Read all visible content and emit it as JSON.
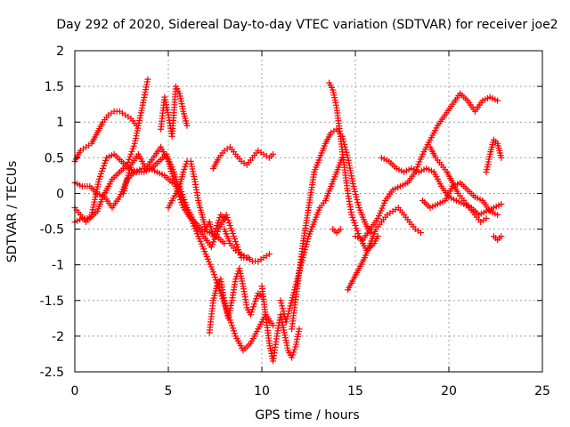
{
  "chart_data": {
    "type": "scatter",
    "title": "Day 292 of 2020, Sidereal Day-to-day VTEC variation (SDTVAR) for receiver joe2",
    "xlabel": "GPS time / hours",
    "ylabel": "SDTVAR / TECUs",
    "xlim": [
      0,
      25
    ],
    "ylim": [
      -2.5,
      2
    ],
    "xticks": [
      0,
      5,
      10,
      15,
      20,
      25
    ],
    "yticks": [
      -2.5,
      -2,
      -1.5,
      -1,
      -0.5,
      0,
      0.5,
      1,
      1.5,
      2
    ],
    "xtick_labels": [
      "0",
      "5",
      "10",
      "15",
      "20",
      "25"
    ],
    "ytick_labels": [
      "-2.5",
      "-2",
      "-1.5",
      "-1",
      "-0.5",
      "0",
      "0.5",
      "1",
      "1.5",
      "2"
    ],
    "grid": true,
    "marker": "+",
    "color": "#ff0000",
    "series": [
      {
        "x": [
          0.0,
          0.3,
          0.6,
          0.9,
          1.2,
          1.5,
          1.8,
          2.1,
          2.4,
          2.7,
          3.0,
          3.3
        ],
        "y": [
          0.45,
          0.6,
          0.65,
          0.7,
          0.85,
          1.0,
          1.1,
          1.15,
          1.15,
          1.1,
          1.05,
          0.95
        ]
      },
      {
        "x": [
          0.0,
          0.4,
          0.8,
          1.2,
          1.5,
          1.8,
          2.0,
          2.4,
          2.8,
          3.2,
          3.6,
          3.9
        ],
        "y": [
          -0.4,
          -0.35,
          -0.35,
          -0.25,
          -0.05,
          0.1,
          0.2,
          0.3,
          0.4,
          0.7,
          1.2,
          1.6
        ]
      },
      {
        "x": [
          0.0,
          0.4,
          0.8,
          1.2,
          1.6,
          2.0,
          2.4,
          2.8,
          3.2,
          3.6,
          4.0,
          4.4,
          4.8,
          5.2,
          5.6,
          6.0,
          6.4,
          6.8,
          7.2,
          7.6,
          8.0
        ],
        "y": [
          0.15,
          0.1,
          0.1,
          0.0,
          -0.05,
          -0.2,
          -0.05,
          0.2,
          0.3,
          0.35,
          0.35,
          0.3,
          0.25,
          0.15,
          0.1,
          -0.2,
          -0.4,
          -0.5,
          -0.55,
          -0.6,
          -0.7
        ]
      },
      {
        "x": [
          0.0,
          0.3,
          0.6,
          0.9,
          1.3,
          1.7,
          2.1,
          2.5,
          2.9,
          3.3,
          3.7,
          4.1,
          4.5,
          4.9,
          5.3,
          5.7,
          6.1,
          6.5,
          6.9,
          7.3,
          7.7,
          8.1,
          8.5,
          8.9,
          9.3
        ],
        "y": [
          -0.2,
          -0.3,
          -0.4,
          -0.3,
          0.2,
          0.5,
          0.55,
          0.45,
          0.35,
          0.3,
          0.3,
          0.35,
          0.45,
          0.55,
          0.3,
          -0.05,
          -0.3,
          -0.45,
          -0.6,
          -0.75,
          -0.5,
          -0.3,
          -0.6,
          -0.9,
          -0.9
        ]
      },
      {
        "x": [
          2.6,
          3.0,
          3.4,
          3.8,
          4.2,
          4.6,
          5.0,
          5.4,
          5.8,
          6.2,
          6.6,
          7.0,
          7.4,
          7.8,
          8.2,
          8.6,
          9.0,
          9.4,
          9.8,
          10.2,
          10.6
        ],
        "y": [
          0.0,
          0.4,
          0.55,
          0.35,
          0.5,
          0.65,
          0.45,
          0.1,
          -0.2,
          -0.35,
          -0.6,
          -0.85,
          -1.1,
          -1.4,
          -1.7,
          -2.0,
          -2.2,
          -2.1,
          -1.9,
          -1.7,
          -1.85
        ]
      },
      {
        "x": [
          4.6,
          4.8,
          5.0,
          5.2,
          5.4,
          5.6,
          5.8,
          6.0
        ],
        "y": [
          0.9,
          1.35,
          1.1,
          0.8,
          1.5,
          1.4,
          1.15,
          0.95
        ]
      },
      {
        "x": [
          5.0,
          5.2,
          5.4,
          5.6,
          5.8,
          6.0,
          6.2,
          6.4,
          6.6,
          6.8,
          7.0,
          7.2,
          7.4,
          7.6,
          7.8,
          8.0
        ],
        "y": [
          -0.2,
          -0.1,
          0.0,
          0.1,
          0.3,
          0.45,
          0.45,
          0.2,
          -0.1,
          -0.3,
          -0.5,
          -0.4,
          -0.6,
          -0.45,
          -0.3,
          -0.35
        ]
      },
      {
        "x": [
          7.2,
          7.4,
          7.6,
          7.8,
          8.0,
          8.2,
          8.4,
          8.6,
          8.8,
          9.0,
          9.2,
          9.4,
          9.6,
          9.8,
          10.0
        ],
        "y": [
          -1.95,
          -1.5,
          -1.3,
          -1.2,
          -1.5,
          -1.75,
          -1.5,
          -1.2,
          -1.05,
          -1.3,
          -1.6,
          -1.7,
          -1.55,
          -1.4,
          -1.45
        ]
      },
      {
        "x": [
          7.4,
          7.7,
          8.0,
          8.3,
          8.6,
          8.9,
          9.2,
          9.5,
          9.8,
          10.1,
          10.4,
          10.6
        ],
        "y": [
          0.35,
          0.5,
          0.6,
          0.65,
          0.55,
          0.45,
          0.4,
          0.5,
          0.6,
          0.55,
          0.5,
          0.55
        ]
      },
      {
        "x": [
          8.0,
          8.3,
          8.6,
          8.9,
          9.2,
          9.5,
          9.8,
          10.1,
          10.4
        ],
        "y": [
          -0.5,
          -0.7,
          -0.8,
          -0.85,
          -0.9,
          -0.95,
          -0.95,
          -0.9,
          -0.85
        ]
      },
      {
        "x": [
          10.0,
          10.2,
          10.4,
          10.6,
          10.8,
          11.0,
          11.2,
          11.4,
          11.6,
          11.8,
          12.0
        ],
        "y": [
          -1.3,
          -1.7,
          -2.1,
          -2.35,
          -2.0,
          -1.7,
          -1.95,
          -2.2,
          -2.3,
          -2.15,
          -1.9
        ]
      },
      {
        "x": [
          11.0,
          11.3,
          11.6,
          11.9,
          12.2,
          12.5,
          12.8,
          13.1,
          13.4,
          13.7,
          14.0,
          14.3
        ],
        "y": [
          -1.5,
          -1.8,
          -1.5,
          -1.2,
          -0.9,
          -0.6,
          -0.4,
          -0.2,
          -0.1,
          0.1,
          0.3,
          0.5
        ]
      },
      {
        "x": [
          11.6,
          11.9,
          12.2,
          12.5,
          12.8,
          13.1,
          13.4,
          13.7,
          14.0,
          14.3,
          14.6,
          14.9,
          15.2,
          15.5,
          15.8
        ],
        "y": [
          -1.9,
          -1.3,
          -0.7,
          -0.2,
          0.3,
          0.5,
          0.7,
          0.85,
          0.9,
          0.8,
          0.5,
          0.1,
          -0.2,
          -0.4,
          -0.55
        ]
      },
      {
        "x": [
          13.6,
          13.8,
          14.0,
          14.2,
          14.4,
          14.6,
          14.8,
          15.0,
          15.2,
          15.4,
          15.6,
          15.8,
          16.0,
          16.2
        ],
        "y": [
          1.55,
          1.45,
          1.2,
          0.8,
          0.4,
          0.0,
          -0.3,
          -0.45,
          -0.6,
          -0.7,
          -0.8,
          -0.75,
          -0.7,
          -0.6
        ]
      },
      {
        "x": [
          13.8,
          14.0,
          14.2
        ],
        "y": [
          -0.5,
          -0.55,
          -0.5
        ]
      },
      {
        "x": [
          14.6,
          14.9,
          15.2,
          15.5,
          15.8,
          16.1,
          16.4,
          16.7,
          17.0,
          17.3,
          17.6,
          17.9,
          18.2,
          18.5
        ],
        "y": [
          -1.35,
          -1.2,
          -1.05,
          -0.9,
          -0.7,
          -0.5,
          -0.4,
          -0.3,
          -0.25,
          -0.2,
          -0.3,
          -0.4,
          -0.5,
          -0.55
        ]
      },
      {
        "x": [
          15.0,
          15.4,
          15.8,
          16.2,
          16.6,
          17.0,
          17.4,
          17.8,
          18.2,
          18.6,
          19.0,
          19.4,
          19.8,
          20.2,
          20.6,
          21.0,
          21.4,
          21.8,
          22.2,
          22.6
        ],
        "y": [
          -0.6,
          -0.65,
          -0.5,
          -0.35,
          -0.1,
          0.05,
          0.1,
          0.15,
          0.3,
          0.55,
          0.75,
          0.95,
          1.1,
          1.25,
          1.4,
          1.3,
          1.15,
          1.3,
          1.35,
          1.3
        ]
      },
      {
        "x": [
          16.4,
          16.8,
          17.2,
          17.6,
          18.0,
          18.4,
          18.8,
          19.2,
          19.6,
          20.0,
          20.4,
          20.8,
          21.2,
          21.6,
          22.0,
          22.4,
          22.8
        ],
        "y": [
          0.5,
          0.45,
          0.35,
          0.3,
          0.35,
          0.3,
          0.35,
          0.3,
          0.1,
          -0.05,
          -0.1,
          -0.15,
          -0.2,
          -0.3,
          -0.25,
          -0.2,
          -0.15
        ]
      },
      {
        "x": [
          18.6,
          19.0,
          19.4,
          19.8,
          20.2,
          20.6,
          21.0,
          21.4,
          21.8,
          22.2,
          22.6
        ],
        "y": [
          -0.1,
          -0.2,
          -0.15,
          -0.1,
          0.1,
          0.15,
          0.05,
          -0.05,
          -0.1,
          -0.25,
          -0.3
        ]
      },
      {
        "x": [
          19.0,
          19.3,
          19.6,
          19.9,
          20.2,
          20.5,
          20.8,
          21.1,
          21.4,
          21.7,
          22.0
        ],
        "y": [
          0.65,
          0.5,
          0.4,
          0.3,
          0.15,
          0.0,
          -0.1,
          -0.2,
          -0.3,
          -0.4,
          -0.35
        ]
      },
      {
        "x": [
          22.0,
          22.2,
          22.4,
          22.6,
          22.8
        ],
        "y": [
          0.3,
          0.55,
          0.75,
          0.7,
          0.5
        ]
      },
      {
        "x": [
          22.4,
          22.6,
          22.8
        ],
        "y": [
          -0.6,
          -0.65,
          -0.6
        ]
      }
    ]
  }
}
